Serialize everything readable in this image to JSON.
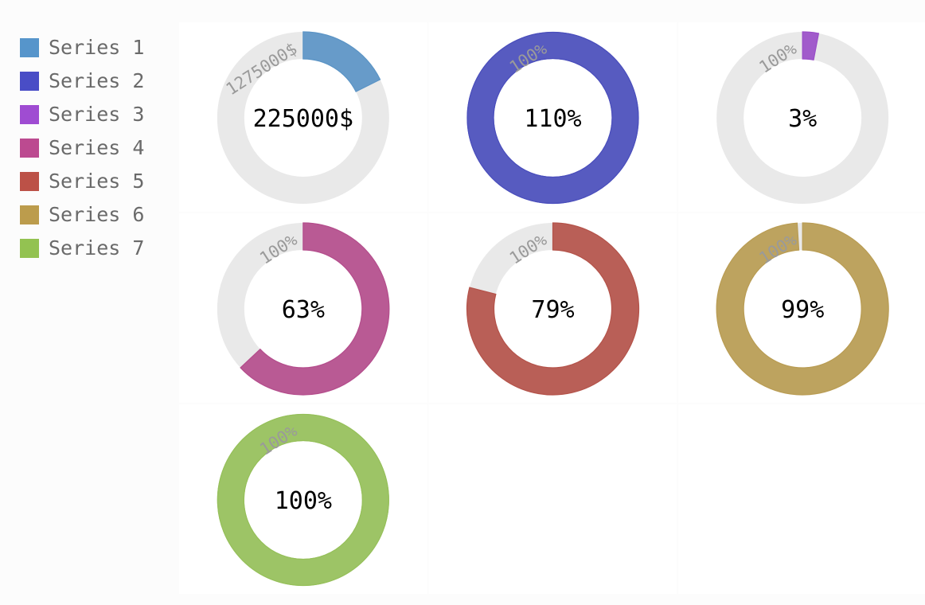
{
  "chart_data": {
    "type": "gauge",
    "series": [
      {
        "name": "Series 1",
        "value": 225000,
        "max": 1275000,
        "label": "225000$",
        "max_label": "1275000$",
        "color": "#5b94c5"
      },
      {
        "name": "Series 2",
        "value": 110,
        "max": 100,
        "label": "110%",
        "max_label": "100%",
        "color": "#4a4ebc"
      },
      {
        "name": "Series 3",
        "value": 3,
        "max": 100,
        "label": "3%",
        "max_label": "100%",
        "color": "#9a4ec8"
      },
      {
        "name": "Series 4",
        "value": 63,
        "max": 100,
        "label": "63%",
        "max_label": "100%",
        "color": "#b44d8c"
      },
      {
        "name": "Series 5",
        "value": 79,
        "max": 100,
        "label": "79%",
        "max_label": "100%",
        "color": "#b4534a"
      },
      {
        "name": "Series 6",
        "value": 99,
        "max": 100,
        "label": "99%",
        "max_label": "100%",
        "color": "#b99c53"
      },
      {
        "name": "Series 7",
        "value": 100,
        "max": 100,
        "label": "100%",
        "max_label": "100%",
        "color": "#96c05a"
      }
    ],
    "legend_position": "left"
  },
  "colors": {
    "track": "#e9e9e9",
    "panel": "#ffffff",
    "background": "#fcfcfc"
  }
}
